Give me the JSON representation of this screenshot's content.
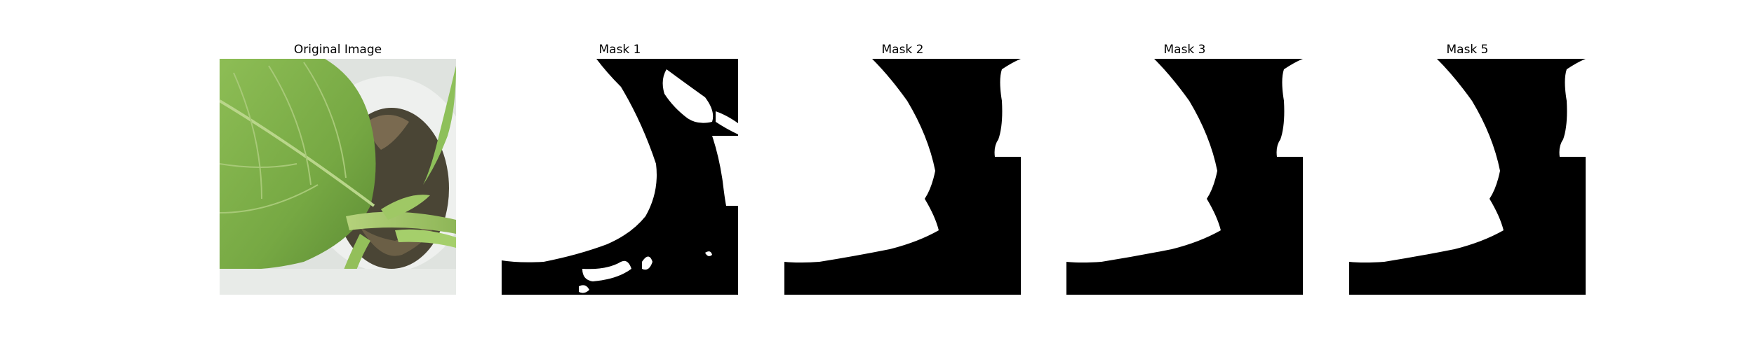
{
  "panels": [
    {
      "title": "Original Image",
      "kind": "photo",
      "content": "green leaves of a potted plant viewed from above"
    },
    {
      "title": "Mask 1",
      "kind": "mask"
    },
    {
      "title": "Mask 2",
      "kind": "mask"
    },
    {
      "title": "Mask 3",
      "kind": "mask"
    },
    {
      "title": "Mask 5",
      "kind": "mask"
    }
  ],
  "colors": {
    "background": "#ffffff",
    "mask_foreground": "#ffffff",
    "mask_background": "#000000",
    "leaf": "#7fae4a",
    "pot": "#e6e8e6"
  }
}
